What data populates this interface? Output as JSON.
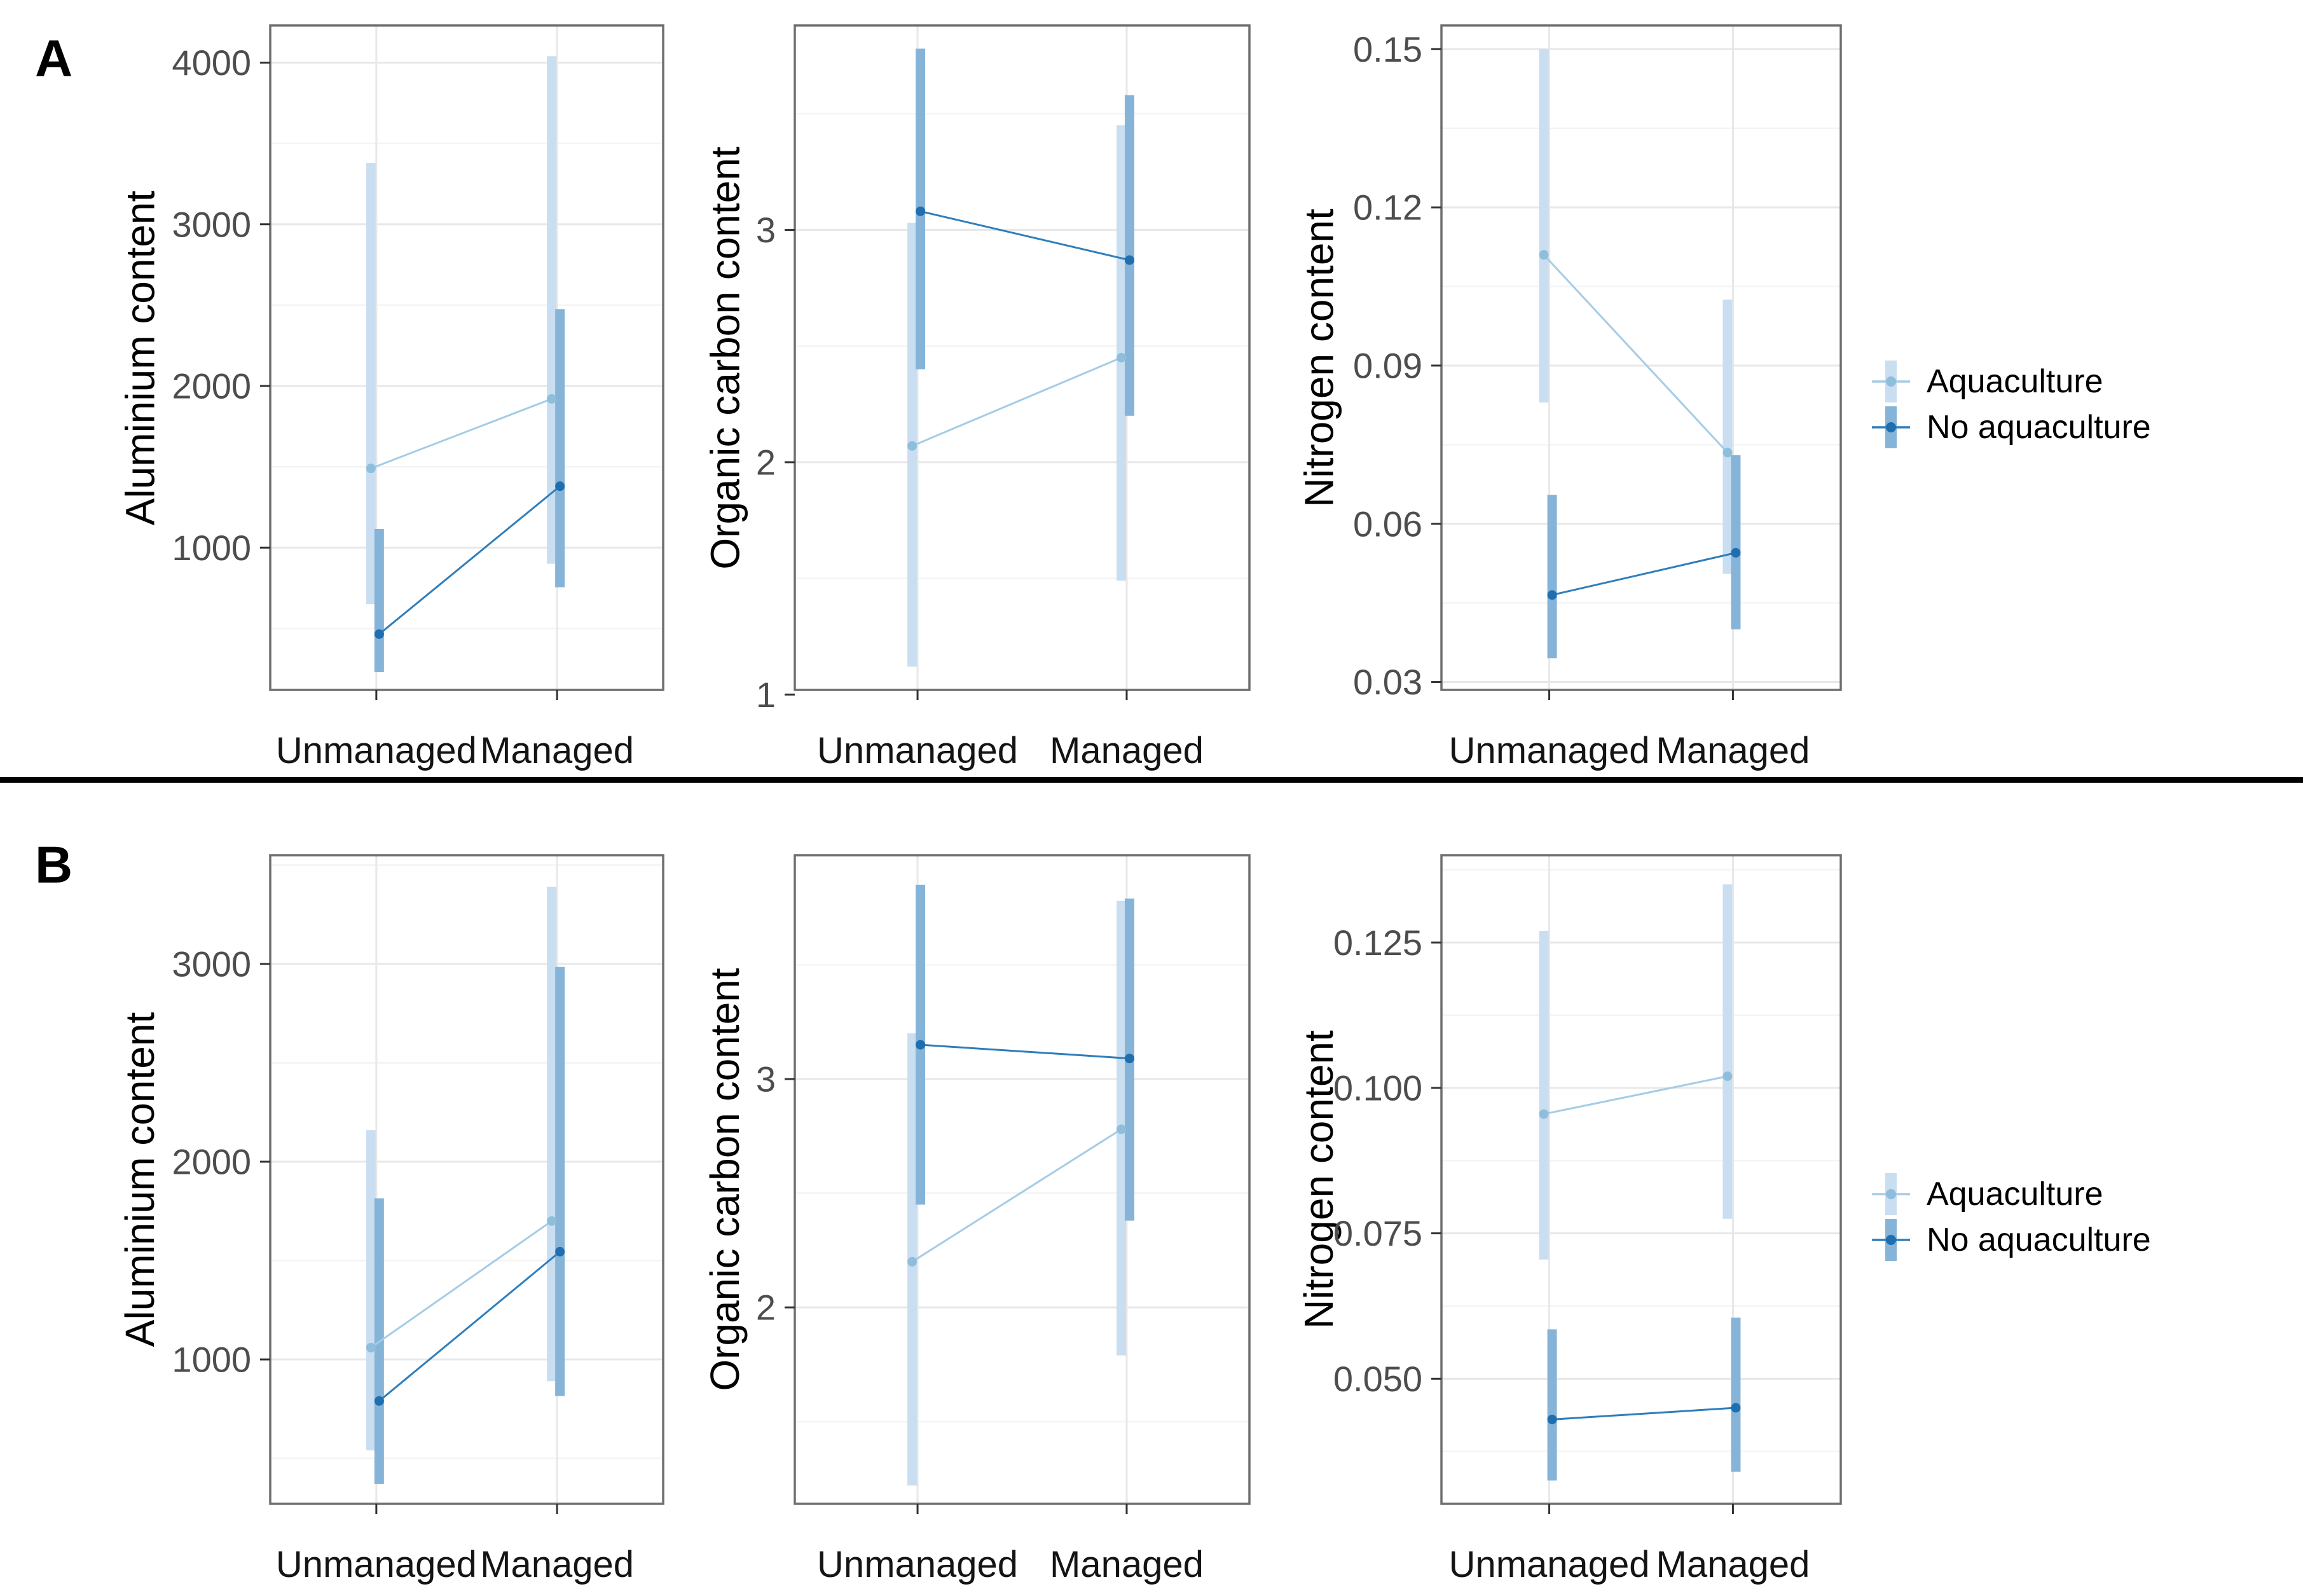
{
  "figure_labels": {
    "row_a": "A",
    "row_b": "B"
  },
  "legend": {
    "position": "right",
    "items": [
      {
        "label": "Aquaculture",
        "series_key": "aqua"
      },
      {
        "label": "No aquaculture",
        "series_key": "noaq"
      }
    ]
  },
  "colors": {
    "aqua_band": "#c9def0",
    "aqua_line": "#a5cce6",
    "aqua_point": "#8fbedd",
    "noaq_band": "#85b4d8",
    "noaq_line": "#2e7ebc",
    "noaq_point": "#1f6eb0",
    "grid_major": "#e8e8e8",
    "grid_minor": "#f4f4f4",
    "panel_border": "#6e6e6e",
    "tick_mark": "#333333",
    "tick_label": "#4d4d4d",
    "x_label": "#141414",
    "separator": "#000000"
  },
  "chart_data": [
    {
      "id": "panel-a-aluminium",
      "row": "A",
      "type": "pointrange",
      "ylabel": "Aluminium content",
      "categories": [
        "Unmanaged",
        "Managed"
      ],
      "ylim": [
        120,
        4230
      ],
      "grid": "on",
      "yticks": [
        {
          "v": 1000,
          "label": "1000"
        },
        {
          "v": 2000,
          "label": "2000"
        },
        {
          "v": 3000,
          "label": "3000"
        },
        {
          "v": 4000,
          "label": "4000"
        }
      ],
      "series": [
        {
          "name": "Aquaculture",
          "points": [
            1490,
            1920
          ],
          "bands": [
            [
              650,
              3380
            ],
            [
              900,
              4040
            ]
          ]
        },
        {
          "name": "No aquaculture",
          "points": [
            465,
            1380
          ],
          "bands": [
            [
              230,
              1115
            ],
            [
              755,
              2475
            ]
          ]
        }
      ]
    },
    {
      "id": "panel-a-organic-carbon",
      "row": "A",
      "type": "pointrange",
      "ylabel": "Organic carbon content",
      "categories": [
        "Unmanaged",
        "Managed"
      ],
      "ylim": [
        1.02,
        3.88
      ],
      "grid": "on",
      "yticks": [
        {
          "v": 1,
          "label": "1"
        },
        {
          "v": 2,
          "label": "2"
        },
        {
          "v": 3,
          "label": "3"
        }
      ],
      "series": [
        {
          "name": "Aquaculture",
          "points": [
            2.07,
            2.45
          ],
          "bands": [
            [
              1.12,
              3.03
            ],
            [
              1.49,
              3.45
            ]
          ]
        },
        {
          "name": "No aquaculture",
          "points": [
            3.08,
            2.87
          ],
          "bands": [
            [
              2.4,
              3.78
            ],
            [
              2.2,
              3.58
            ]
          ]
        }
      ]
    },
    {
      "id": "panel-a-nitrogen",
      "row": "A",
      "type": "pointrange",
      "ylabel": "Nitrogen content",
      "categories": [
        "Unmanaged",
        "Managed"
      ],
      "ylim": [
        0.0285,
        0.1545
      ],
      "grid": "on",
      "yticks": [
        {
          "v": 0.03,
          "label": "0.03"
        },
        {
          "v": 0.06,
          "label": "0.06"
        },
        {
          "v": 0.09,
          "label": "0.09"
        },
        {
          "v": 0.12,
          "label": "0.12"
        },
        {
          "v": 0.15,
          "label": "0.15"
        }
      ],
      "series": [
        {
          "name": "Aquaculture",
          "points": [
            0.111,
            0.0735
          ],
          "bands": [
            [
              0.083,
              0.15
            ],
            [
              0.0505,
              0.1025
            ]
          ]
        },
        {
          "name": "No aquaculture",
          "points": [
            0.0465,
            0.0545
          ],
          "bands": [
            [
              0.0345,
              0.0655
            ],
            [
              0.04,
              0.073
            ]
          ]
        }
      ]
    },
    {
      "id": "panel-b-aluminium",
      "row": "B",
      "type": "pointrange",
      "ylabel": "Aluminium content",
      "categories": [
        "Unmanaged",
        "Managed"
      ],
      "ylim": [
        270,
        3550
      ],
      "grid": "on",
      "yticks": [
        {
          "v": 1000,
          "label": "1000"
        },
        {
          "v": 2000,
          "label": "2000"
        },
        {
          "v": 3000,
          "label": "3000"
        }
      ],
      "series": [
        {
          "name": "Aquaculture",
          "points": [
            1060,
            1700
          ],
          "bands": [
            [
              540,
              2160
            ],
            [
              890,
              3390
            ]
          ]
        },
        {
          "name": "No aquaculture",
          "points": [
            790,
            1545
          ],
          "bands": [
            [
              370,
              1815
            ],
            [
              815,
              2985
            ]
          ]
        }
      ]
    },
    {
      "id": "panel-b-organic-carbon",
      "row": "B",
      "type": "pointrange",
      "ylabel": "Organic carbon content",
      "categories": [
        "Unmanaged",
        "Managed"
      ],
      "ylim": [
        1.14,
        3.98
      ],
      "grid": "on",
      "yticks": [
        {
          "v": 2,
          "label": "2"
        },
        {
          "v": 3,
          "label": "3"
        }
      ],
      "series": [
        {
          "name": "Aquaculture",
          "points": [
            2.2,
            2.78
          ],
          "bands": [
            [
              1.22,
              3.2
            ],
            [
              1.79,
              3.78
            ]
          ]
        },
        {
          "name": "No aquaculture",
          "points": [
            3.15,
            3.09
          ],
          "bands": [
            [
              2.45,
              3.85
            ],
            [
              2.38,
              3.79
            ]
          ]
        }
      ]
    },
    {
      "id": "panel-b-nitrogen",
      "row": "B",
      "type": "pointrange",
      "ylabel": "Nitrogen content",
      "categories": [
        "Unmanaged",
        "Managed"
      ],
      "ylim": [
        0.0285,
        0.14
      ],
      "grid": "on",
      "yticks": [
        {
          "v": 0.05,
          "label": "0.050"
        },
        {
          "v": 0.075,
          "label": "0.075"
        },
        {
          "v": 0.1,
          "label": "0.100"
        },
        {
          "v": 0.125,
          "label": "0.125"
        }
      ],
      "series": [
        {
          "name": "Aquaculture",
          "points": [
            0.0955,
            0.102
          ],
          "bands": [
            [
              0.0705,
              0.127
            ],
            [
              0.0775,
              0.135
            ]
          ]
        },
        {
          "name": "No aquaculture",
          "points": [
            0.043,
            0.045
          ],
          "bands": [
            [
              0.0325,
              0.0585
            ],
            [
              0.034,
              0.0605
            ]
          ]
        }
      ]
    }
  ]
}
